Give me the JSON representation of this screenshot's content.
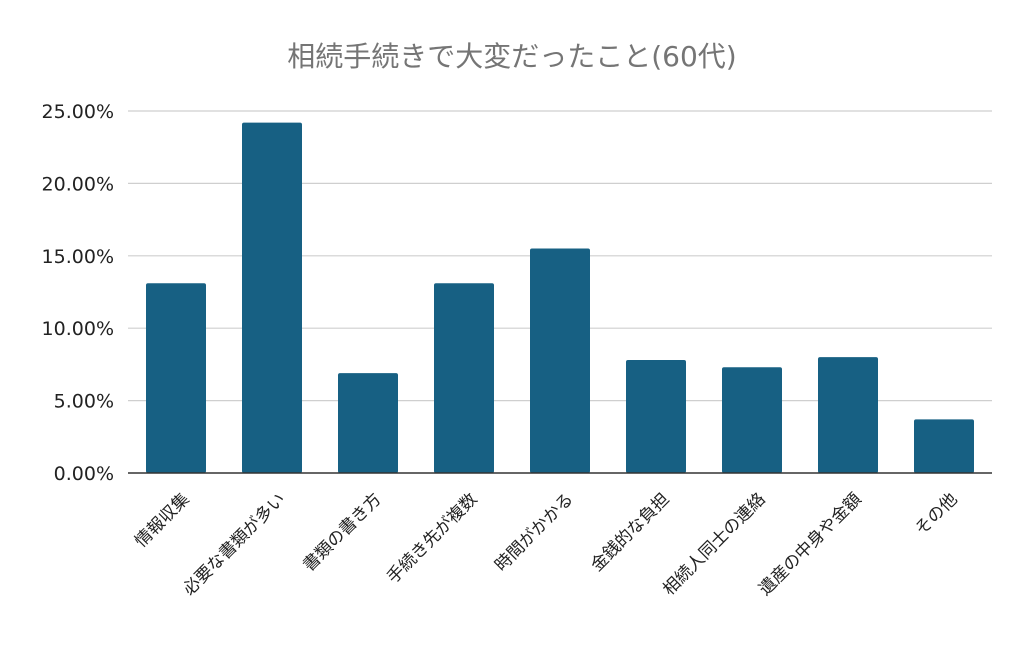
{
  "chart_data": {
    "type": "bar",
    "title": "相続手続きで大変だったこと(60代)",
    "xlabel": "",
    "ylabel": "",
    "categories": [
      "情報収集",
      "必要な書類が多い",
      "書類の書き方",
      "手続き先が複数",
      "時間がかかる",
      "金銭的な負担",
      "相続人同士の連絡",
      "遺産の中身や金額",
      "その他"
    ],
    "values": [
      13.1,
      24.2,
      6.9,
      13.1,
      15.5,
      7.8,
      7.3,
      8.0,
      3.7
    ],
    "yticks": [
      "0.00%",
      "5.00%",
      "10.00%",
      "15.00%",
      "20.00%",
      "25.00%"
    ],
    "ylim": [
      0,
      25
    ],
    "grid": true,
    "legend": "none",
    "bar_color": "#176083"
  }
}
